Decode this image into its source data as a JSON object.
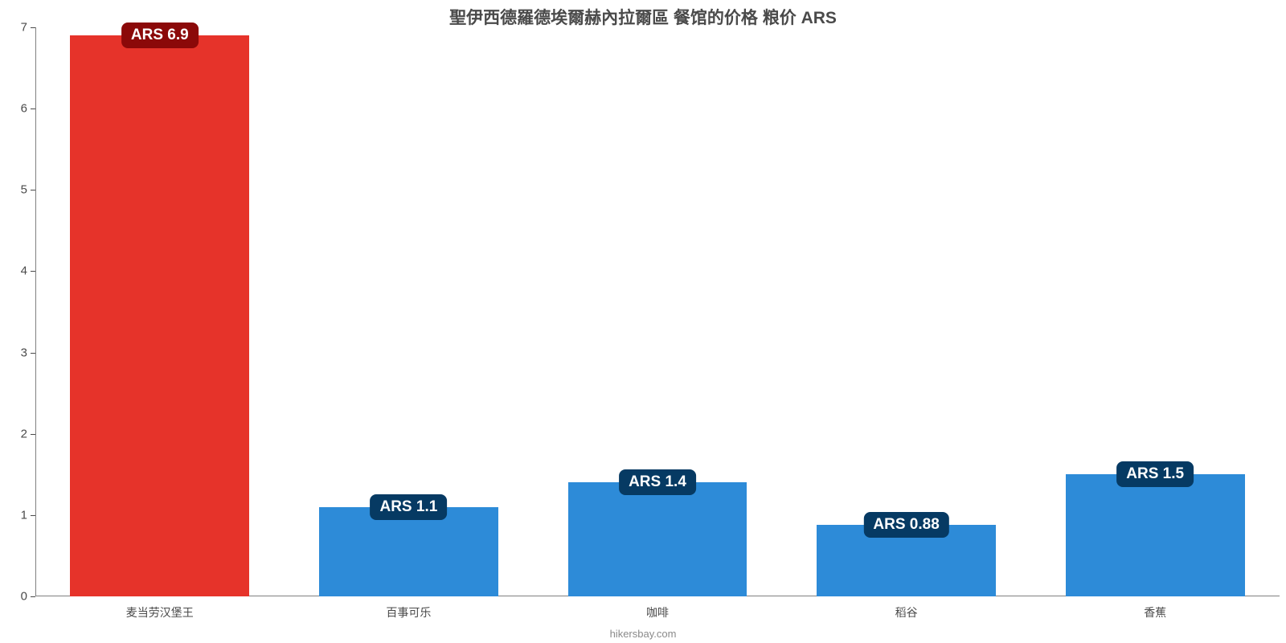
{
  "chart": {
    "type": "bar",
    "title": "聖伊西德羅德埃爾赫內拉爾區 餐馆的价格 粮价 ARS",
    "title_fontsize": 21,
    "title_color": "#4a4a4a",
    "background_color": "#ffffff",
    "credit": "hikersbay.com",
    "credit_fontsize": 13,
    "credit_color": "#8a8a8a",
    "y_axis": {
      "min": 0,
      "max": 7,
      "tick_step": 1,
      "tick_fontsize": 15,
      "tick_color": "#4a4a4a",
      "axis_line_color": "#808080"
    },
    "x_axis": {
      "tick_fontsize": 14,
      "tick_color": "#4a4a4a"
    },
    "bar_width_ratio": 0.72,
    "value_label": {
      "prefix": "ARS ",
      "fontsize": 19,
      "text_color": "#ffffff",
      "border_radius": 8
    },
    "value_label_bg": {
      "red": "#8b0909",
      "blue": "#063a63"
    },
    "series": [
      {
        "category": "麦当劳汉堡王",
        "value": 6.9,
        "display": "ARS 6.9",
        "bar_color": "#e6332a",
        "label_bg_key": "red"
      },
      {
        "category": "百事可乐",
        "value": 1.1,
        "display": "ARS 1.1",
        "bar_color": "#2d8bd8",
        "label_bg_key": "blue"
      },
      {
        "category": "咖啡",
        "value": 1.4,
        "display": "ARS 1.4",
        "bar_color": "#2d8bd8",
        "label_bg_key": "blue"
      },
      {
        "category": "稻谷",
        "value": 0.88,
        "display": "ARS 0.88",
        "bar_color": "#2d8bd8",
        "label_bg_key": "blue"
      },
      {
        "category": "香蕉",
        "value": 1.5,
        "display": "ARS 1.5",
        "bar_color": "#2d8bd8",
        "label_bg_key": "blue"
      }
    ]
  }
}
